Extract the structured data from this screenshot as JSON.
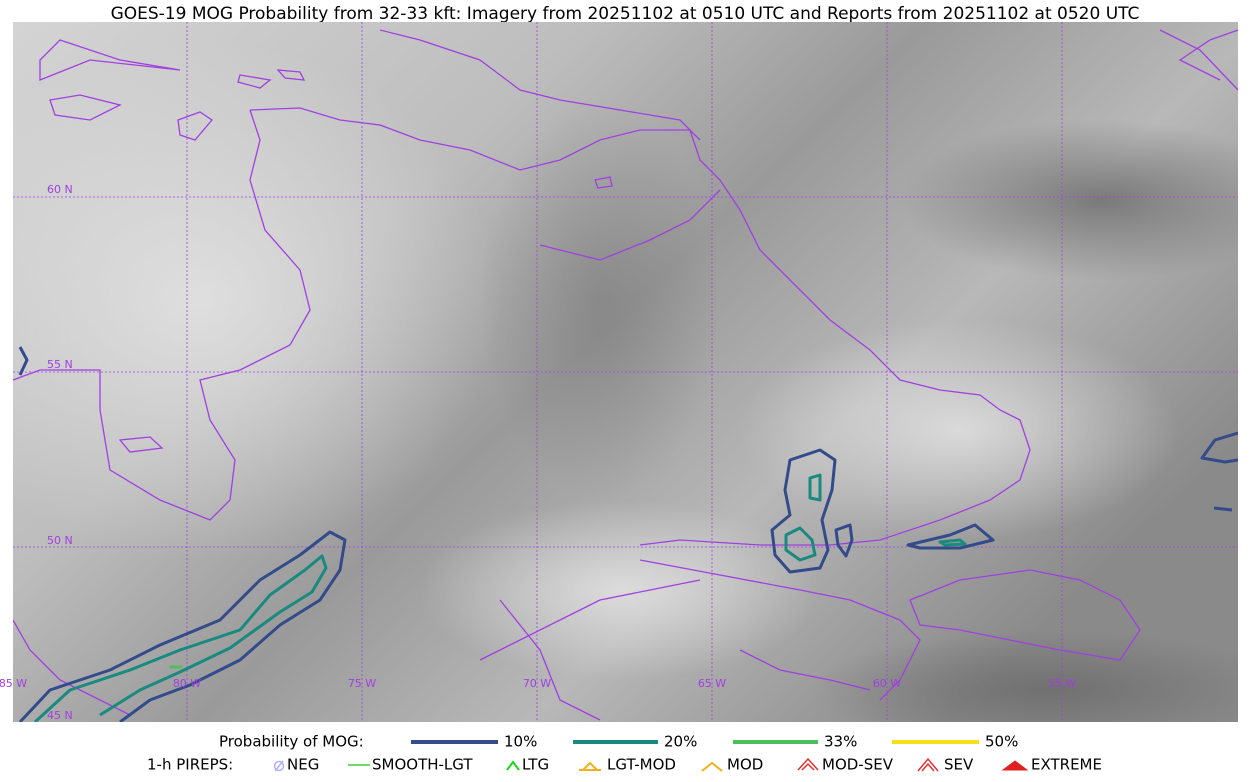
{
  "title": "GOES-19 MOG Probability from 32-33 kft: Imagery from 20251102 at 0510 UTC and Reports from 20251102 at 0520 UTC",
  "map": {
    "latitude_labels": [
      "60 N",
      "55 N",
      "50 N",
      "45 N"
    ],
    "longitude_labels": [
      "85 W",
      "80 W",
      "75 W",
      "70 W",
      "65 W",
      "60 W",
      "55 W"
    ]
  },
  "legend": {
    "probability": {
      "label": "Probability of MOG:",
      "items": [
        "10%",
        "20%",
        "33%",
        "50%"
      ]
    },
    "pireps": {
      "label": "1-h PIREPS:",
      "items": [
        "NEG",
        "SMOOTH-LGT",
        "LTG",
        "LGT-MOD",
        "MOD",
        "MOD-SEV",
        "SEV",
        "EXTREME"
      ]
    }
  }
}
